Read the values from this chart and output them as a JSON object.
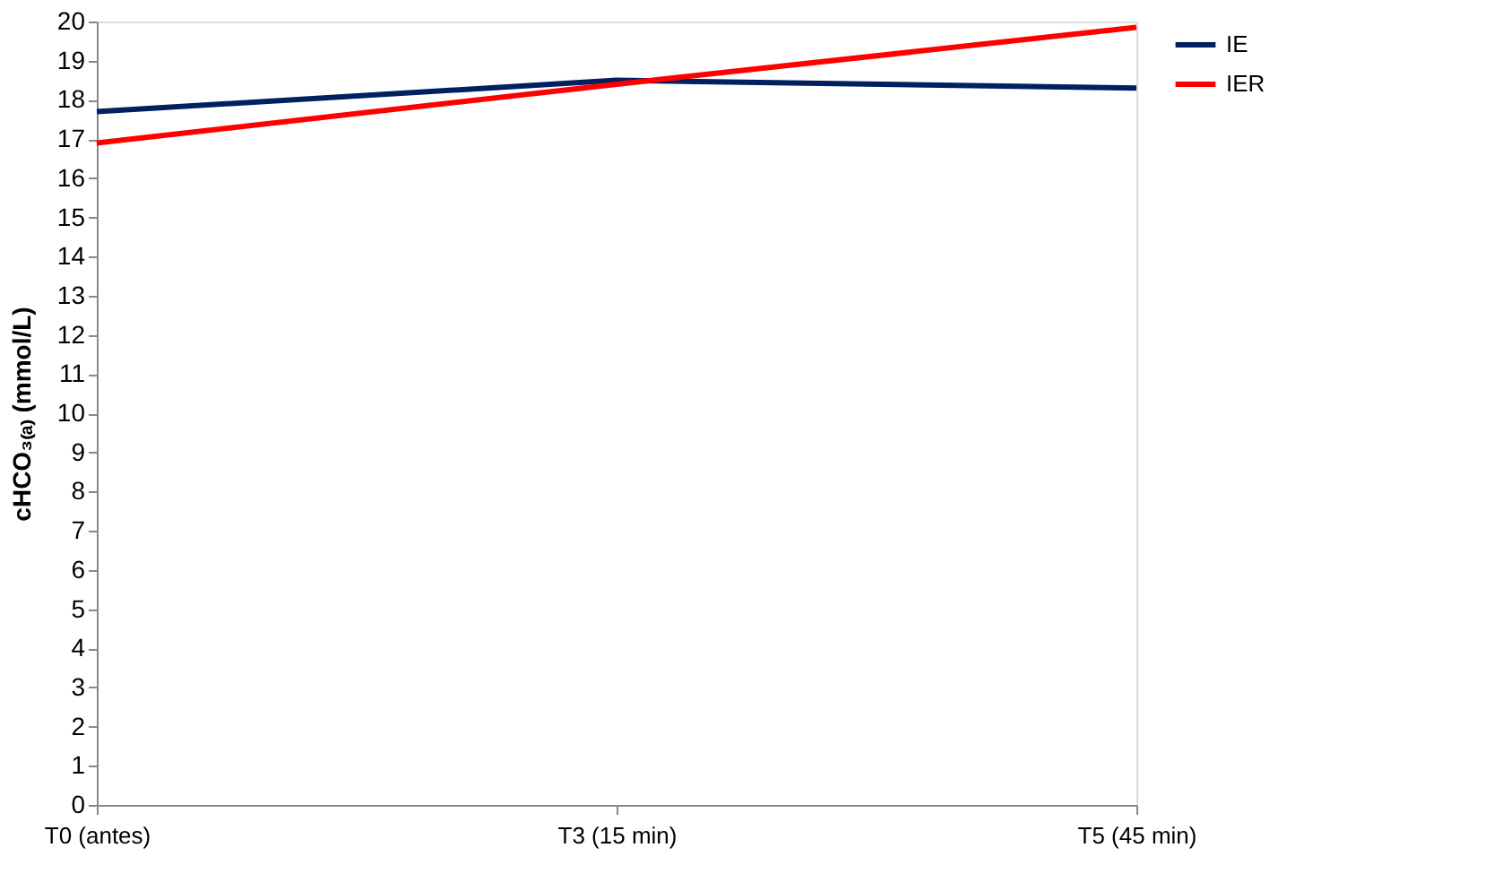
{
  "chart_data": {
    "type": "line",
    "ylabel": "cHCO₃₍ₐ₎ (mmol/L)",
    "categories": [
      "T0 (antes)",
      "T3 (15 min)",
      "T5 (45 min)"
    ],
    "series": [
      {
        "name": "IE",
        "color": "#002060",
        "values": [
          17.7,
          18.5,
          18.3
        ]
      },
      {
        "name": "IER",
        "color": "#ff0000",
        "values": [
          16.9,
          18.4,
          19.85
        ]
      }
    ],
    "ylim": [
      0,
      20
    ],
    "yticks": [
      0,
      1,
      2,
      3,
      4,
      5,
      6,
      7,
      8,
      9,
      10,
      11,
      12,
      13,
      14,
      15,
      16,
      17,
      18,
      19,
      20
    ],
    "grid": false,
    "legend": "right",
    "marker": "none",
    "line_style": "solid"
  }
}
